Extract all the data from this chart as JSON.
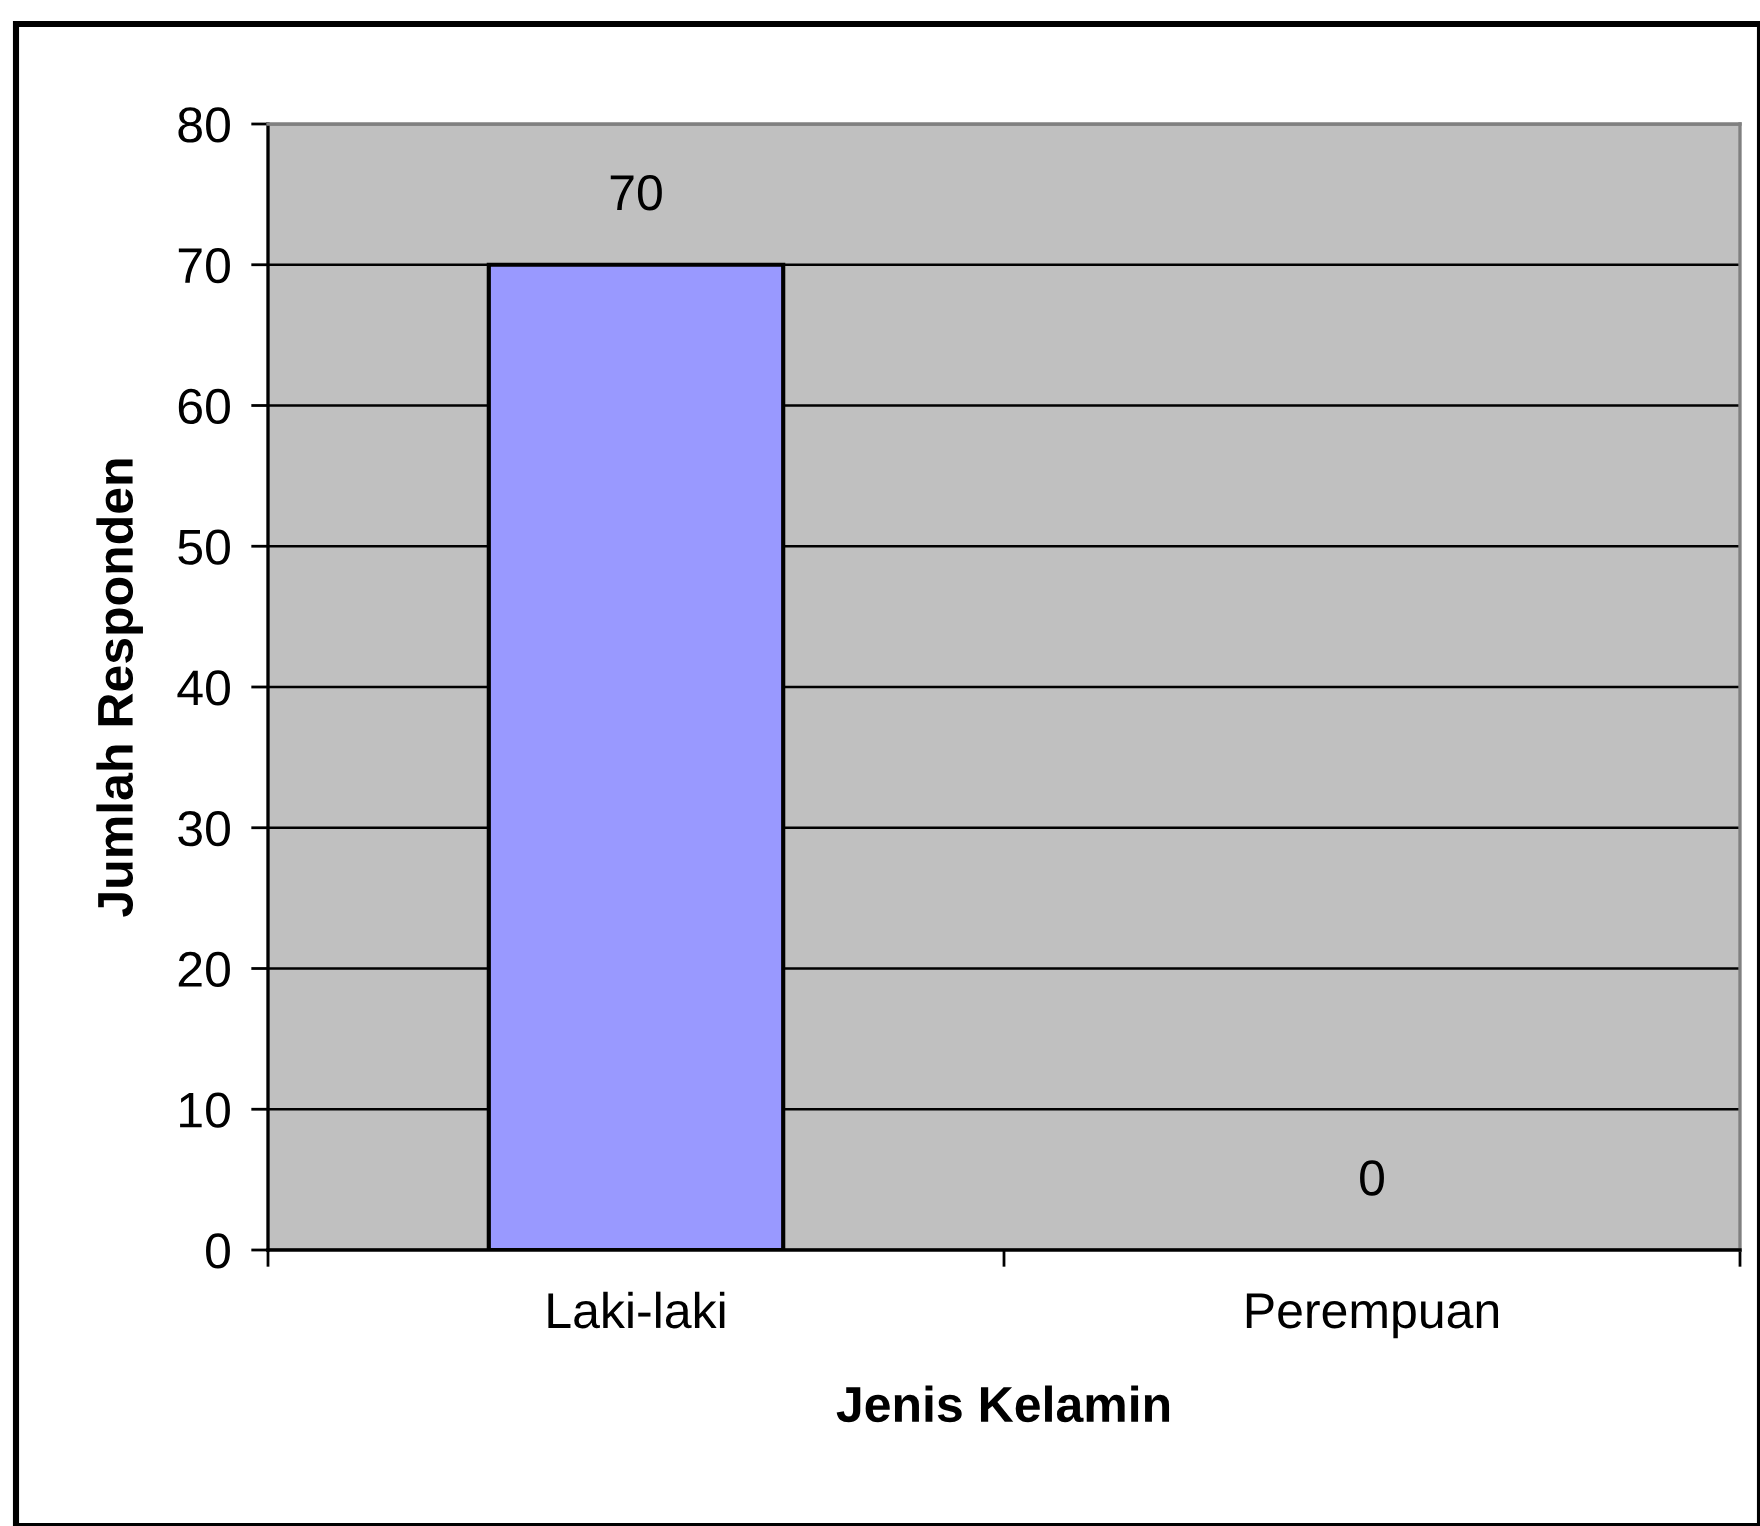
{
  "chart_data": {
    "type": "bar",
    "xlabel": "Jenis Kelamin",
    "ylabel": "Jumlah Responden",
    "categories": [
      "Laki-laki",
      "Perempuan"
    ],
    "values": [
      70,
      0
    ],
    "color": "#9999ff",
    "ylim": [
      0,
      80
    ],
    "yticks": [
      0,
      10,
      20,
      30,
      40,
      50,
      60,
      70,
      80
    ],
    "grid": "y",
    "data_labels": true
  }
}
